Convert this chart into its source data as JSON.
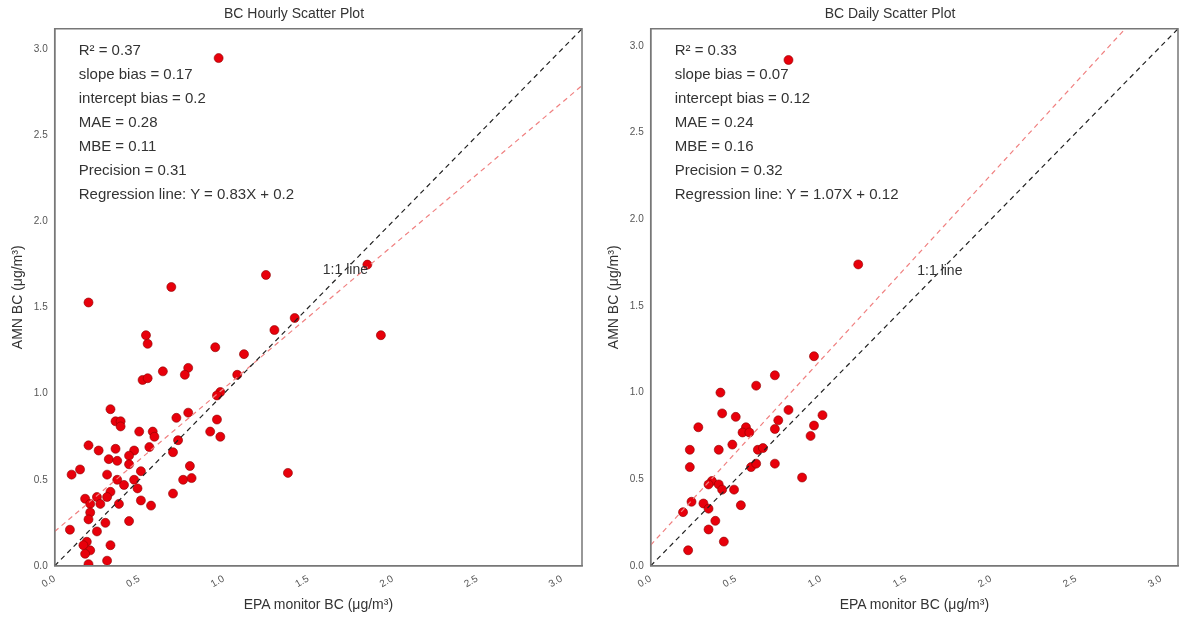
{
  "chart_data": [
    {
      "type": "scatter",
      "title": "BC Hourly Scatter Plot",
      "xlabel": "EPA monitor BC (μg/m³)",
      "ylabel": "AMN BC (μg/m³)",
      "xlim": [
        0,
        3.12
      ],
      "ylim": [
        0,
        3.12
      ],
      "xticks": [
        {
          "value": 0,
          "label": "0.0"
        },
        0.5,
        {
          "value": 1,
          "label": "1.0"
        },
        1.5,
        {
          "value": 2,
          "label": "2.0"
        },
        2.5,
        {
          "value": 3,
          "label": "3.0"
        }
      ],
      "yticks": [
        {
          "value": 0,
          "label": "0.0"
        },
        0.5,
        {
          "value": 1,
          "label": "1.0"
        },
        1.5,
        {
          "value": 2,
          "label": "2.0"
        },
        2.5,
        {
          "value": 3,
          "label": "3.0"
        }
      ],
      "grid": false,
      "legend": false,
      "series": [
        {
          "marker": "circle",
          "color": "#e8000b",
          "x": [
            0.2,
            0.69,
            1.25,
            0.54,
            0.55,
            0.95,
            1.12,
            1.42,
            1.3,
            0.64,
            0.79,
            0.77,
            0.52,
            0.55,
            1.08,
            0.98,
            0.96,
            0.33,
            0.36,
            0.39,
            0.39,
            0.72,
            0.79,
            0.96,
            0.92,
            0.98,
            0.5,
            0.58,
            0.59,
            0.2,
            0.26,
            0.36,
            0.47,
            0.44,
            0.56,
            0.73,
            0.7,
            0.32,
            0.37,
            0.44,
            0.51,
            0.8,
            0.1,
            0.15,
            0.31,
            0.37,
            0.41,
            0.47,
            0.49,
            0.76,
            0.81,
            0.7,
            0.33,
            0.31,
            0.25,
            0.18,
            0.21,
            0.27,
            0.38,
            0.51,
            0.57,
            0.21,
            0.2,
            0.3,
            0.44,
            0.25,
            0.09,
            0.19,
            0.17,
            0.21,
            0.18,
            0.33,
            0.31,
            0.2,
            1.38,
            1.93,
            1.85,
            0.97
          ],
          "values": [
            1.53,
            1.62,
            1.69,
            1.34,
            1.29,
            1.27,
            1.23,
            1.44,
            1.37,
            1.13,
            1.15,
            1.11,
            1.08,
            1.09,
            1.11,
            1.01,
            0.99,
            0.91,
            0.84,
            0.84,
            0.81,
            0.86,
            0.89,
            0.85,
            0.78,
            0.75,
            0.78,
            0.78,
            0.75,
            0.7,
            0.67,
            0.68,
            0.67,
            0.64,
            0.69,
            0.73,
            0.66,
            0.62,
            0.61,
            0.59,
            0.55,
            0.58,
            0.53,
            0.56,
            0.53,
            0.5,
            0.47,
            0.5,
            0.45,
            0.5,
            0.51,
            0.42,
            0.43,
            0.4,
            0.4,
            0.39,
            0.36,
            0.36,
            0.36,
            0.38,
            0.35,
            0.31,
            0.27,
            0.25,
            0.26,
            0.2,
            0.21,
            0.14,
            0.12,
            0.09,
            0.07,
            0.12,
            0.03,
            0.01,
            0.54,
            1.34,
            1.75,
            2.95
          ]
        },
        {
          "type": "line",
          "marker": "none",
          "color": "#222222",
          "line_style": "dashed",
          "x": [
            0,
            3.12
          ],
          "values": [
            0,
            3.12
          ]
        },
        {
          "type": "line",
          "marker": "none",
          "color": "#f08080",
          "line_style": "dashed",
          "x": [
            0,
            3.12
          ],
          "values": [
            0.2,
            2.79
          ]
        }
      ],
      "annotations": [
        "R² = 0.37",
        "slope bias = 0.17",
        "intercept bias = 0.2",
        "MAE = 0.28",
        "MBE = 0.11",
        "Precision = 0.31",
        "Regression line: Y = 0.83X + 0.2",
        {
          "text": "1:1 line",
          "x": 1.72,
          "y": 1.72
        }
      ]
    },
    {
      "type": "scatter",
      "title": "BC Daily Scatter Plot",
      "xlabel": "EPA monitor BC (μg/m³)",
      "ylabel": "AMN BC (μg/m³)",
      "xlim": [
        0,
        3.1
      ],
      "ylim": [
        0,
        3.1
      ],
      "xticks": [
        {
          "value": 0,
          "label": "0.0"
        },
        0.5,
        {
          "value": 1,
          "label": "1.0"
        },
        1.5,
        {
          "value": 2,
          "label": "2.0"
        },
        2.5,
        {
          "value": 3,
          "label": "3.0"
        }
      ],
      "yticks": [
        {
          "value": 0,
          "label": "0.0"
        },
        0.5,
        {
          "value": 1,
          "label": "1.0"
        },
        1.5,
        {
          "value": 2,
          "label": "2.0"
        },
        2.5,
        {
          "value": 3,
          "label": "3.0"
        }
      ],
      "grid": false,
      "legend": false,
      "series": [
        {
          "marker": "circle",
          "color": "#e8000b",
          "x": [
            0.96,
            0.73,
            0.41,
            0.62,
            0.81,
            0.42,
            0.5,
            0.75,
            1.01,
            0.96,
            0.28,
            0.56,
            0.54,
            0.58,
            0.73,
            0.94,
            0.48,
            0.23,
            0.4,
            0.63,
            0.66,
            0.23,
            0.59,
            0.62,
            0.73,
            0.89,
            0.36,
            0.34,
            0.4,
            0.42,
            0.49,
            0.24,
            0.31,
            0.34,
            0.53,
            0.19,
            0.38,
            0.34,
            0.43,
            0.22,
            1.22,
            0.81
          ],
          "values": [
            1.21,
            1.1,
            1.0,
            1.04,
            0.9,
            0.88,
            0.86,
            0.84,
            0.87,
            0.81,
            0.8,
            0.8,
            0.77,
            0.77,
            0.79,
            0.75,
            0.7,
            0.67,
            0.67,
            0.67,
            0.68,
            0.57,
            0.57,
            0.59,
            0.59,
            0.51,
            0.49,
            0.47,
            0.47,
            0.44,
            0.44,
            0.37,
            0.36,
            0.33,
            0.35,
            0.31,
            0.26,
            0.21,
            0.14,
            0.09,
            1.74,
            2.92
          ]
        },
        {
          "type": "line",
          "marker": "none",
          "color": "#222222",
          "line_style": "dashed",
          "x": [
            0,
            3.1
          ],
          "values": [
            0,
            3.1
          ]
        },
        {
          "type": "line",
          "marker": "none",
          "color": "#f08080",
          "line_style": "dashed",
          "x": [
            0,
            2.78
          ],
          "values": [
            0.12,
            3.09
          ]
        }
      ],
      "annotations": [
        "R² = 0.33",
        "slope bias = 0.07",
        "intercept bias = 0.12",
        "MAE = 0.24",
        "MBE = 0.16",
        "Precision = 0.32",
        "Regression line: Y = 1.07X + 0.12",
        {
          "text": "1:1 line",
          "x": 1.7,
          "y": 1.7
        }
      ]
    }
  ]
}
